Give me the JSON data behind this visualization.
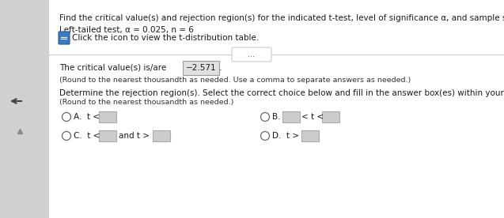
{
  "bg_color": "#e8e8e8",
  "panel_color": "#f5f5f5",
  "left_strip_color": "#d0d0d0",
  "title_line1": "Find the critical value(s) and rejection region(s) for the indicated t-test, level of significance α, and sample size n.",
  "title_line2": "Left-tailed test, α = 0.025, n = 6",
  "icon_text": "Click the icon to view the t-distribution table.",
  "critical_label": "The critical value(s) is/are",
  "critical_value": "−2.571",
  "critical_note": "(Round to the nearest thousandth as needed. Use a comma to separate answers as needed.)",
  "rejection_label": "Determine the rejection region(s). Select the correct choice below and fill in the answer box(es) within your choice.",
  "rejection_note": "(Round to the nearest thousandth as needed.)",
  "separator_text": "...",
  "box_color": "#cccccc",
  "box_edge_color": "#aaaaaa",
  "circle_edge_color": "#666666",
  "icon_color": "#3a7abf",
  "text_color": "#1a1a1a",
  "note_color": "#333333",
  "sep_line_color": "#cccccc",
  "critical_box_bg": "#e0e0e0",
  "critical_box_edge": "#999999",
  "arrow_color": "#444444",
  "tri_color": "#888888"
}
